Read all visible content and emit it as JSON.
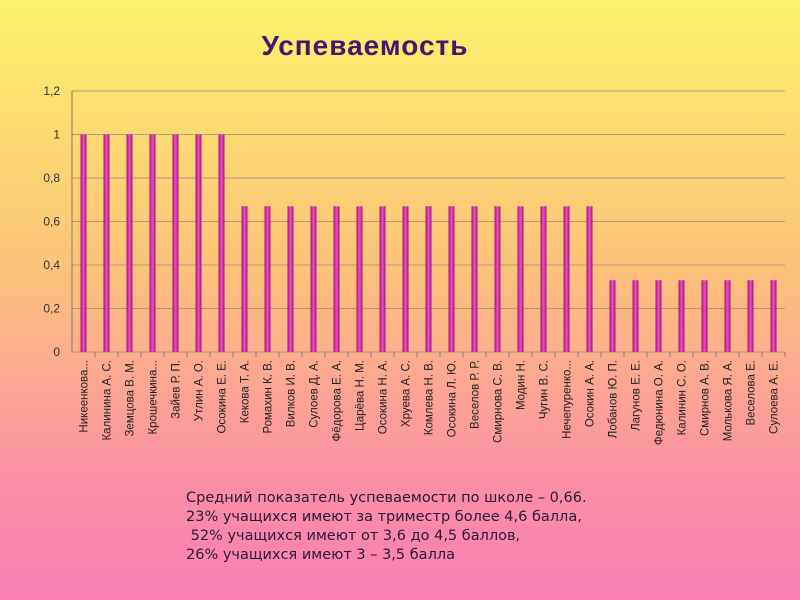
{
  "chart_data": {
    "type": "bar",
    "title": "Успеваемость",
    "xlabel": "",
    "ylabel": "",
    "ylim": [
      0,
      1.2
    ],
    "yticks": [
      "0",
      "0,2",
      "0,4",
      "0,6",
      "0,8",
      "1",
      "1,2"
    ],
    "grid": true,
    "bar_color": "#d0209a",
    "categories": [
      "Никеенкова...",
      "Калинина А. С.",
      "Земцова В. М.",
      "Крошечкина...",
      "Зайев Р. П.",
      "Утлин А. О.",
      "Осокина Е. Е.",
      "Кекова Т. А.",
      "Ромахин К. В.",
      "Вилков И. В.",
      "Сулоев Д. А.",
      "Фёдорова Е. А.",
      "Царёва Н. М.",
      "Осокина Н. А.",
      "Хруева А. С.",
      "Комлева Н. В.",
      "Осокина Л. Ю.",
      "Веселов Р. Р.",
      "Смирнова С. В.",
      "Модин Н.",
      "Чугин В. С.",
      "Нечепуренко...",
      "Осокин А. А.",
      "Лобанов Ю. П.",
      "Лагунов Е. Е.",
      "Федюнина О. А.",
      "Калинин С. О.",
      "Смирнов А. В.",
      "Молькова Я. А.",
      "Веселова Е.",
      "Сулоева А. Е."
    ],
    "values": [
      1,
      1,
      1,
      1,
      1,
      1,
      1,
      0.67,
      0.67,
      0.67,
      0.67,
      0.67,
      0.67,
      0.67,
      0.67,
      0.67,
      0.67,
      0.67,
      0.67,
      0.67,
      0.67,
      0.67,
      0.67,
      0.33,
      0.33,
      0.33,
      0.33,
      0.33,
      0.33,
      0.33,
      0.33
    ]
  },
  "notes": [
    "Средний показатель успеваемости по школе – 0,66.",
    "23% учащихся имеют за триместр более 4,6 балла,",
    " 52% учащихся имеют от 3,6 до 4,5 баллов,",
    "26% учащихся имеют 3 – 3,5 балла"
  ]
}
